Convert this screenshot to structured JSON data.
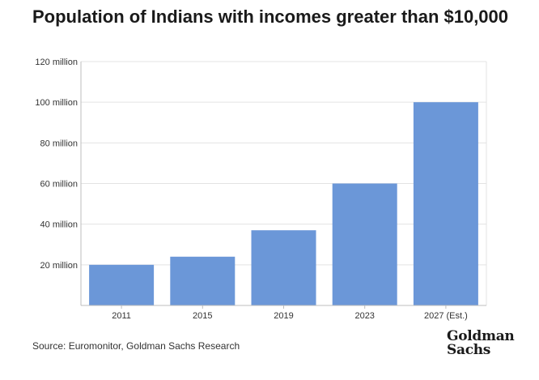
{
  "title": "Population of Indians with incomes greater than $10,000",
  "source": "Source: Euromonitor, Goldman Sachs Research",
  "logo": {
    "line1": "Goldman",
    "line2": "Sachs"
  },
  "colors": {
    "bar": "#6b97d8",
    "grid": "#e3e3e3",
    "axis": "#bdbdbd"
  },
  "chart_data": {
    "type": "bar",
    "title": "Population of Indians with incomes greater than $10,000",
    "categories": [
      "2011",
      "2015",
      "2019",
      "2023",
      "2027 (Est.)"
    ],
    "values": [
      20,
      24,
      37,
      60,
      100
    ],
    "unit": "million",
    "ylim": [
      0,
      120
    ],
    "yticks": [
      20,
      40,
      60,
      80,
      100,
      120
    ],
    "ytick_labels": [
      "20 million",
      "40 million",
      "60 million",
      "80 million",
      "100 million",
      "120 million"
    ],
    "xlabel": "",
    "ylabel": "",
    "grid": true
  }
}
